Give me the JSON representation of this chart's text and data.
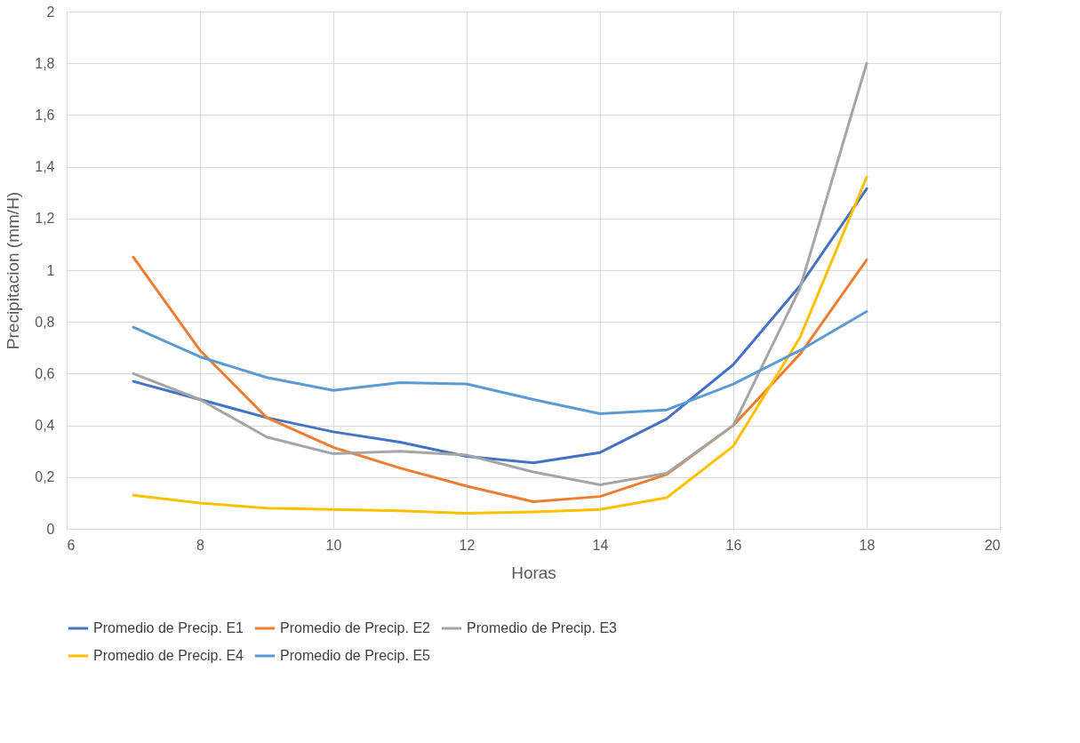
{
  "chart_data": {
    "type": "line",
    "xlabel": "Horas",
    "ylabel": "Precipitacion (mm/H)",
    "x": [
      7,
      8,
      9,
      10,
      11,
      12,
      13,
      14,
      15,
      16,
      17,
      18
    ],
    "xlim": [
      6,
      20
    ],
    "xticks": [
      6,
      8,
      10,
      12,
      14,
      16,
      18,
      20
    ],
    "ylim": [
      0,
      2
    ],
    "yticks": [
      0,
      {
        "value": 0.2,
        "label": "0,2"
      },
      {
        "value": 0.4,
        "label": "0,4"
      },
      {
        "value": 0.6,
        "label": "0,6"
      },
      {
        "value": 0.8,
        "label": "0,8"
      },
      1,
      {
        "value": 1.2,
        "label": "1,2"
      },
      {
        "value": 1.4,
        "label": "1,4"
      },
      {
        "value": 1.6,
        "label": "1,6"
      },
      {
        "value": 1.8,
        "label": "1,8"
      },
      2
    ],
    "grid": true,
    "legend": "bottom",
    "series": [
      {
        "name": "Promedio de Precip. E1",
        "color": "#4472c4",
        "values": [
          0.57,
          0.5,
          0.43,
          0.375,
          0.335,
          0.28,
          0.255,
          0.295,
          0.425,
          0.635,
          0.94,
          1.315
        ]
      },
      {
        "name": "Promedio de Precip. E2",
        "color": "#ed7d31",
        "values": [
          1.05,
          0.69,
          0.43,
          0.315,
          0.235,
          0.165,
          0.105,
          0.125,
          0.21,
          0.4,
          0.675,
          1.04
        ]
      },
      {
        "name": "Promedio de Precip. E3",
        "color": "#a5a5a5",
        "values": [
          0.6,
          0.5,
          0.355,
          0.29,
          0.3,
          0.285,
          0.22,
          0.17,
          0.215,
          0.4,
          0.93,
          1.8
        ]
      },
      {
        "name": "Promedio de Precip. E4",
        "color": "#ffc000",
        "values": [
          0.13,
          0.1,
          0.08,
          0.075,
          0.07,
          0.06,
          0.065,
          0.075,
          0.12,
          0.32,
          0.74,
          1.36
        ]
      },
      {
        "name": "Promedio de Precip. E5",
        "color": "#5b9bd5",
        "values": [
          0.78,
          0.665,
          0.585,
          0.535,
          0.565,
          0.56,
          0.5,
          0.445,
          0.46,
          0.56,
          0.69,
          0.84
        ]
      }
    ]
  }
}
